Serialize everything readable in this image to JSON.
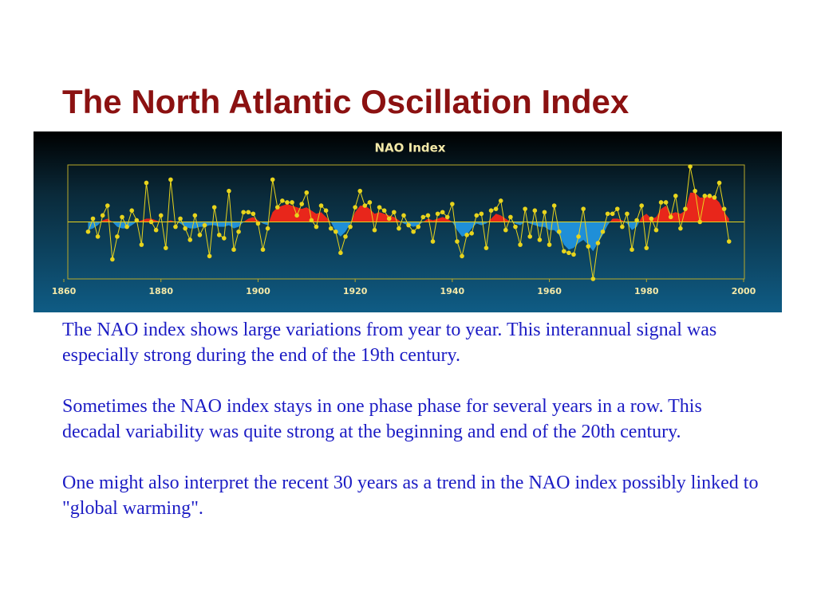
{
  "title": "The North Atlantic Oscillation Index",
  "paragraphs": [
    "The NAO index shows large variations from year to year. This interannual signal was especially strong during the end of the 19th century.",
    "Sometimes the NAO index stays in one phase phase for several years in a row. This decadal variability was quite strong at the beginning and end of the 20th century.",
    "One might also interpret the recent 30 years as a trend in the NAO index possibly linked to \"global warming\"."
  ],
  "chart_data": {
    "type": "line",
    "title": "NAO   Index",
    "x": [
      1865,
      1866,
      1867,
      1868,
      1869,
      1870,
      1871,
      1872,
      1873,
      1874,
      1875,
      1876,
      1877,
      1878,
      1879,
      1880,
      1881,
      1882,
      1883,
      1884,
      1885,
      1886,
      1887,
      1888,
      1889,
      1890,
      1891,
      1892,
      1893,
      1894,
      1895,
      1896,
      1897,
      1898,
      1899,
      1900,
      1901,
      1902,
      1903,
      1904,
      1905,
      1906,
      1907,
      1908,
      1909,
      1910,
      1911,
      1912,
      1913,
      1914,
      1915,
      1916,
      1917,
      1918,
      1919,
      1920,
      1921,
      1922,
      1923,
      1924,
      1925,
      1926,
      1927,
      1928,
      1929,
      1930,
      1931,
      1932,
      1933,
      1934,
      1935,
      1936,
      1937,
      1938,
      1939,
      1940,
      1941,
      1942,
      1943,
      1944,
      1945,
      1946,
      1947,
      1948,
      1949,
      1950,
      1951,
      1952,
      1953,
      1954,
      1955,
      1956,
      1957,
      1958,
      1959,
      1960,
      1961,
      1962,
      1963,
      1964,
      1965,
      1966,
      1967,
      1968,
      1969,
      1970,
      1971,
      1972,
      1973,
      1974,
      1975,
      1976,
      1977,
      1978,
      1979,
      1980,
      1981,
      1982,
      1983,
      1984,
      1985,
      1986,
      1987,
      1988,
      1989,
      1990,
      1991,
      1992,
      1993,
      1994,
      1995,
      1996,
      1997
    ],
    "series": [
      {
        "color": "#e8d41c",
        "values": [
          -0.6,
          0.2,
          -0.9,
          0.4,
          1.0,
          -2.3,
          -0.9,
          0.3,
          -0.3,
          0.7,
          0.1,
          -1.4,
          2.4,
          0.0,
          -0.5,
          0.4,
          -1.6,
          2.6,
          -0.3,
          0.2,
          -0.4,
          -1.1,
          0.4,
          -0.8,
          -0.2,
          -2.1,
          0.9,
          -0.8,
          -1.0,
          1.9,
          -1.7,
          -0.6,
          0.6,
          0.6,
          0.5,
          -0.1,
          -1.7,
          -0.4,
          2.6,
          0.9,
          1.3,
          1.2,
          1.2,
          0.4,
          1.1,
          1.8,
          0.1,
          -0.3,
          1.0,
          0.7,
          -0.4,
          -0.6,
          -1.9,
          -0.9,
          -0.3,
          0.9,
          1.9,
          1.0,
          1.2,
          -0.5,
          0.9,
          0.7,
          0.2,
          0.6,
          -0.4,
          0.4,
          -0.2,
          -0.6,
          -0.3,
          0.3,
          0.4,
          -1.2,
          0.5,
          0.6,
          0.3,
          1.1,
          -1.2,
          -2.1,
          -0.8,
          -0.7,
          0.4,
          0.5,
          -1.6,
          0.7,
          0.8,
          1.3,
          -0.5,
          0.3,
          -0.3,
          -1.4,
          0.8,
          -0.9,
          0.7,
          -1.1,
          0.6,
          -1.4,
          1.0,
          -0.6,
          -1.8,
          -1.9,
          -2.0,
          -0.9,
          0.8,
          -1.5,
          -3.5,
          -1.3,
          -0.6,
          0.5,
          0.5,
          0.8,
          -0.3,
          0.5,
          -1.7,
          0.1,
          1.0,
          -1.6,
          0.2,
          -0.5,
          1.2,
          1.2,
          0.3,
          1.6,
          -0.4,
          0.8,
          3.4,
          1.9,
          0.0,
          1.6,
          1.6,
          1.5,
          2.4,
          0.8,
          -1.2
        ]
      },
      {
        "colors": [
          "#e8261b",
          "#1f8fd8"
        ],
        "values": [
          -0.5,
          -0.4,
          -0.2,
          0.1,
          0.2,
          0.0,
          -0.3,
          -0.4,
          -0.4,
          -0.2,
          0.0,
          0.1,
          0.2,
          0.2,
          0.1,
          0.0,
          0.0,
          0.1,
          0.0,
          -0.1,
          -0.3,
          -0.4,
          -0.4,
          -0.3,
          -0.3,
          -0.2,
          -0.2,
          -0.3,
          -0.3,
          -0.2,
          -0.4,
          -0.3,
          0.0,
          0.2,
          0.3,
          0.1,
          -0.1,
          -0.2,
          0.6,
          0.9,
          1.0,
          1.1,
          1.0,
          0.9,
          0.8,
          0.9,
          0.7,
          0.5,
          0.6,
          0.3,
          0.0,
          -0.6,
          -0.9,
          -0.6,
          -0.1,
          0.6,
          1.0,
          1.0,
          0.8,
          0.5,
          0.6,
          0.5,
          0.4,
          0.3,
          0.1,
          -0.1,
          -0.2,
          -0.3,
          -0.2,
          0.0,
          0.2,
          0.1,
          0.2,
          0.3,
          0.2,
          0.0,
          -0.5,
          -0.9,
          -0.8,
          -0.4,
          -0.1,
          -0.2,
          -0.1,
          0.2,
          0.5,
          0.4,
          0.2,
          0.0,
          -0.1,
          -0.2,
          0.0,
          -0.1,
          -0.2,
          -0.3,
          -0.3,
          -0.5,
          -0.5,
          -0.8,
          -1.4,
          -1.7,
          -1.6,
          -1.3,
          -1.1,
          -1.4,
          -1.8,
          -1.3,
          -0.8,
          -0.2,
          0.2,
          0.2,
          0.1,
          -0.1,
          -0.5,
          -0.3,
          0.3,
          0.5,
          0.2,
          0.3,
          0.8,
          1.0,
          0.5,
          0.6,
          0.5,
          0.7,
          1.8,
          1.8,
          1.5,
          1.5,
          1.6,
          1.5,
          1.2,
          0.6,
          0.2
        ]
      }
    ],
    "xlim": [
      1860,
      2000
    ],
    "xticks": [
      1860,
      1880,
      1900,
      1920,
      1940,
      1960,
      1980,
      2000
    ],
    "ylim": [
      -3.5,
      3.5
    ]
  }
}
